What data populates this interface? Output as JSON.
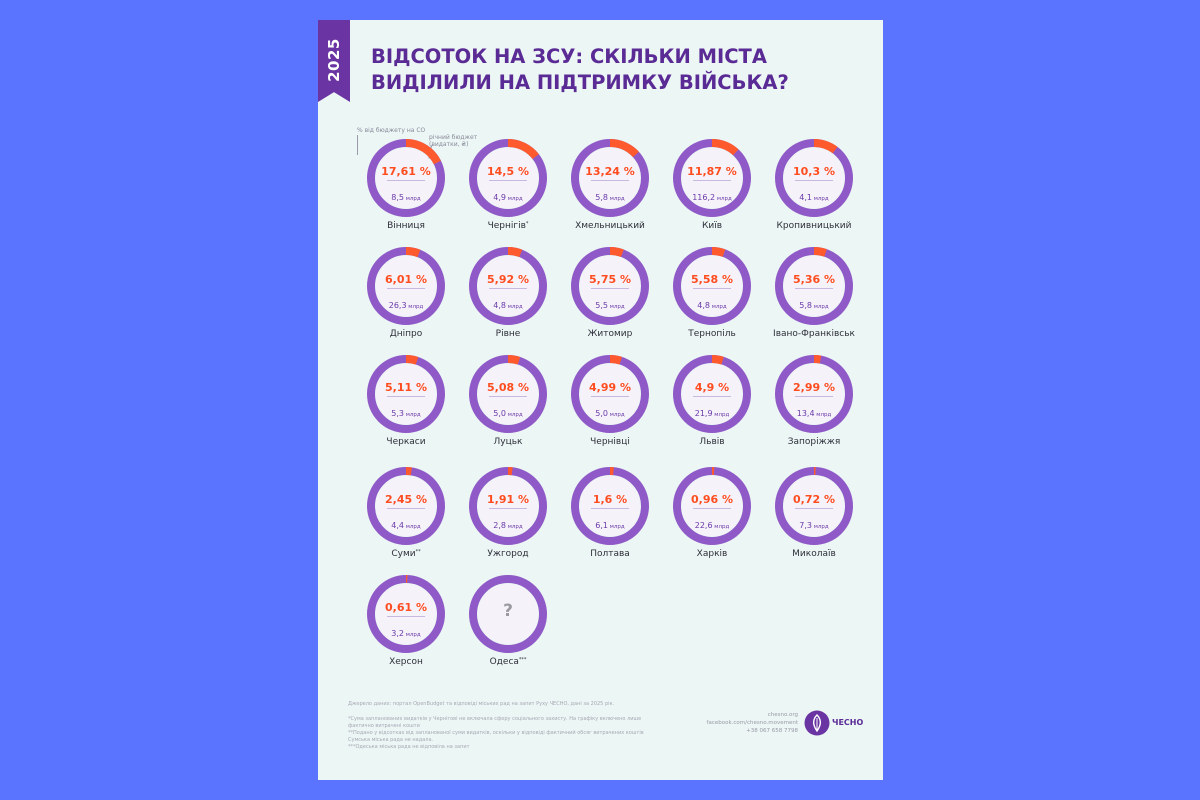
{
  "header": {
    "year": "2025",
    "title_line1": "ВІДСОТОК НА ЗСУ: СКІЛЬКИ МІСТА",
    "title_line2": "ВИДІЛИЛИ НА ПІДТРИМКУ ВІЙСЬКА?"
  },
  "legend": {
    "share_label": "% від бюджету на СО",
    "budget_label_line1": "річний бюджет",
    "budget_label_line2": "(видатки, ₴)"
  },
  "colors": {
    "share": "#ff5a2e",
    "ring": "#8f5ac7",
    "ring_dark": "#6b38a8",
    "accent": "#5a2a95"
  },
  "chart_data": {
    "type": "donut-grid",
    "title": "ВІДСОТОК НА ЗСУ: СКІЛЬКИ МІСТА ВИДІЛИЛИ НА ПІДТРИМКУ ВІЙСЬКА?",
    "unit_share": "%",
    "unit_budget": "млрд",
    "cities": [
      {
        "name": "Вінниця",
        "mark": "",
        "pct_label": "17,61 %",
        "pct": 17.61,
        "budget_label": "8,5",
        "budget": 8.5
      },
      {
        "name": "Чернігів",
        "mark": "*",
        "pct_label": "14,5 %",
        "pct": 14.5,
        "budget_label": "4,9",
        "budget": 4.9
      },
      {
        "name": "Хмельницький",
        "mark": "",
        "pct_label": "13,24 %",
        "pct": 13.24,
        "budget_label": "5,8",
        "budget": 5.8
      },
      {
        "name": "Київ",
        "mark": "",
        "pct_label": "11,87 %",
        "pct": 11.87,
        "budget_label": "116,2",
        "budget": 116.2
      },
      {
        "name": "Кропивницький",
        "mark": "",
        "pct_label": "10,3 %",
        "pct": 10.3,
        "budget_label": "4,1",
        "budget": 4.1
      },
      {
        "name": "Дніпро",
        "mark": "",
        "pct_label": "6,01 %",
        "pct": 6.01,
        "budget_label": "26,3",
        "budget": 26.3
      },
      {
        "name": "Рівне",
        "mark": "",
        "pct_label": "5,92 %",
        "pct": 5.92,
        "budget_label": "4,8",
        "budget": 4.8
      },
      {
        "name": "Житомир",
        "mark": "",
        "pct_label": "5,75 %",
        "pct": 5.75,
        "budget_label": "5,5",
        "budget": 5.5
      },
      {
        "name": "Тернопіль",
        "mark": "",
        "pct_label": "5,58 %",
        "pct": 5.58,
        "budget_label": "4,8",
        "budget": 4.8
      },
      {
        "name": "Івано-Франківськ",
        "mark": "",
        "pct_label": "5,36 %",
        "pct": 5.36,
        "budget_label": "5,8",
        "budget": 5.8
      },
      {
        "name": "Черкаси",
        "mark": "",
        "pct_label": "5,11 %",
        "pct": 5.11,
        "budget_label": "5,3",
        "budget": 5.3
      },
      {
        "name": "Луцьк",
        "mark": "",
        "pct_label": "5,08 %",
        "pct": 5.08,
        "budget_label": "5,0",
        "budget": 5.0
      },
      {
        "name": "Чернівці",
        "mark": "",
        "pct_label": "4,99 %",
        "pct": 4.99,
        "budget_label": "5,0",
        "budget": 5.0
      },
      {
        "name": "Львів",
        "mark": "",
        "pct_label": "4,9 %",
        "pct": 4.9,
        "budget_label": "21,9",
        "budget": 21.9
      },
      {
        "name": "Запоріжжя",
        "mark": "",
        "pct_label": "2,99 %",
        "pct": 2.99,
        "budget_label": "13,4",
        "budget": 13.4
      },
      {
        "name": "Суми",
        "mark": "**",
        "pct_label": "2,45 %",
        "pct": 2.45,
        "budget_label": "4,4",
        "budget": 4.4
      },
      {
        "name": "Ужгород",
        "mark": "",
        "pct_label": "1,91 %",
        "pct": 1.91,
        "budget_label": "2,8",
        "budget": 2.8
      },
      {
        "name": "Полтава",
        "mark": "",
        "pct_label": "1,6 %",
        "pct": 1.6,
        "budget_label": "6,1",
        "budget": 6.1
      },
      {
        "name": "Харків",
        "mark": "",
        "pct_label": "0,96 %",
        "pct": 0.96,
        "budget_label": "22,6",
        "budget": 22.6
      },
      {
        "name": "Миколаїв",
        "mark": "",
        "pct_label": "0,72 %",
        "pct": 0.72,
        "budget_label": "7,3",
        "budget": 7.3
      },
      {
        "name": "Херсон",
        "mark": "",
        "pct_label": "0,61 %",
        "pct": 0.61,
        "budget_label": "3,2",
        "budget": 3.2
      },
      {
        "name": "Одеса",
        "mark": "***",
        "pct_label": "",
        "pct": null,
        "budget_label": "",
        "budget": null,
        "unknown_label": "?"
      }
    ]
  },
  "footer": {
    "source": "Джерело даних: портал OpenBudget та відповіді міських рад на запит Руху ЧЕСНО, дані за 2025 рік.",
    "note1": "*Сума запланованих видатків у Чернігові не включала сферу соціального захисту. На графіку включено лише фактично витрачені кошти",
    "note2": "**Подано у відсотках від запланованої суми видатків, оскільки у відповіді фактичний обсяг витрачених коштів Сумська міська рада не надала.",
    "note3": "***Одеська міська рада не відповіла на запит",
    "site": "chesno.org",
    "facebook": "facebook.com/chesno.movement",
    "phone": "+38 067 658 7798",
    "logo_text": "ЧЕСНО"
  }
}
